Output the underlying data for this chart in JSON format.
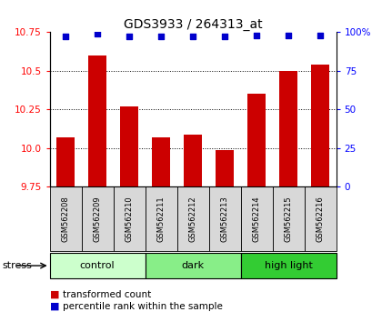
{
  "title": "GDS3933 / 264313_at",
  "samples": [
    "GSM562208",
    "GSM562209",
    "GSM562210",
    "GSM562211",
    "GSM562212",
    "GSM562213",
    "GSM562214",
    "GSM562215",
    "GSM562216"
  ],
  "transformed_counts": [
    10.07,
    10.6,
    10.27,
    10.07,
    10.09,
    9.99,
    10.35,
    10.5,
    10.54
  ],
  "percentile_ranks": [
    97,
    99,
    97,
    97,
    97,
    97,
    98,
    98,
    98
  ],
  "ylim_left": [
    9.75,
    10.75
  ],
  "ylim_right": [
    0,
    100
  ],
  "yticks_left": [
    9.75,
    10.0,
    10.25,
    10.5,
    10.75
  ],
  "yticks_right": [
    0,
    25,
    50,
    75,
    100
  ],
  "groups": [
    {
      "label": "control",
      "indices": [
        0,
        1,
        2
      ],
      "color": "#ccffcc"
    },
    {
      "label": "dark",
      "indices": [
        3,
        4,
        5
      ],
      "color": "#88ee88"
    },
    {
      "label": "high light",
      "indices": [
        6,
        7,
        8
      ],
      "color": "#33cc33"
    }
  ],
  "bar_color": "#cc0000",
  "dot_color": "#0000cc",
  "bar_width": 0.55,
  "bg_color": "#d8d8d8",
  "stress_label": "stress",
  "legend_items": [
    {
      "color": "#cc0000",
      "label": "transformed count"
    },
    {
      "color": "#0000cc",
      "label": "percentile rank within the sample"
    }
  ]
}
